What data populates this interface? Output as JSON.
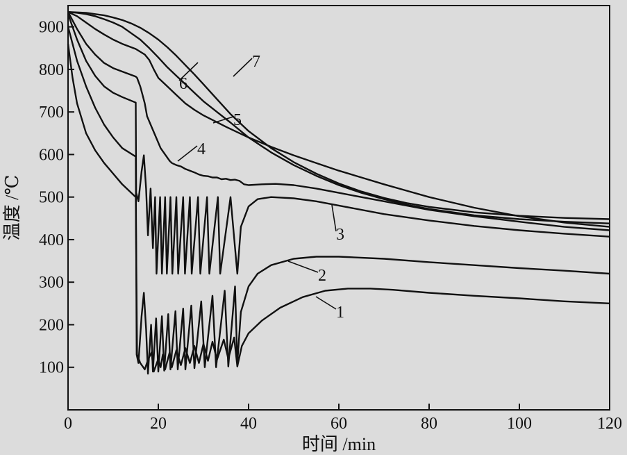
{
  "chart_data": {
    "type": "line",
    "xlabel": "时间 /min",
    "ylabel": "温度 /℃",
    "xlim": [
      0,
      120
    ],
    "ylim": [
      0,
      950
    ],
    "xticks": [
      0,
      20,
      40,
      60,
      80,
      100,
      120
    ],
    "yticks": [
      100,
      200,
      300,
      400,
      500,
      600,
      700,
      800,
      900
    ],
    "x_tick_labels": [
      "0",
      "20",
      "40",
      "60",
      "80",
      "100",
      "120"
    ],
    "y_tick_labels": [
      "100",
      "200",
      "300",
      "400",
      "500",
      "600",
      "700",
      "800",
      "900"
    ],
    "grid": false,
    "colors": {
      "background": "#dcdcdc",
      "line": "#111111"
    },
    "series": [
      {
        "name": "1",
        "points": [
          [
            0,
            860
          ],
          [
            1,
            780
          ],
          [
            2,
            720
          ],
          [
            4,
            650
          ],
          [
            6,
            610
          ],
          [
            8,
            580
          ],
          [
            10,
            555
          ],
          [
            12,
            530
          ],
          [
            15,
            500
          ],
          [
            15.3,
            130
          ],
          [
            16,
            110
          ],
          [
            17,
            95
          ],
          [
            17.8,
            120
          ],
          [
            18.5,
            135
          ],
          [
            19,
            90
          ],
          [
            20,
            120
          ],
          [
            20.5,
            100
          ],
          [
            21,
            130
          ],
          [
            21.5,
            95
          ],
          [
            22.5,
            135
          ],
          [
            23,
            100
          ],
          [
            24,
            140
          ],
          [
            25,
            105
          ],
          [
            26,
            145
          ],
          [
            27,
            110
          ],
          [
            28,
            150
          ],
          [
            29,
            110
          ],
          [
            30,
            155
          ],
          [
            31,
            115
          ],
          [
            32,
            160
          ],
          [
            33,
            118
          ],
          [
            34.5,
            165
          ],
          [
            35.5,
            120
          ],
          [
            36.8,
            170
          ],
          [
            37.5,
            102
          ],
          [
            38.5,
            150
          ],
          [
            40,
            180
          ],
          [
            43,
            210
          ],
          [
            47,
            240
          ],
          [
            52,
            265
          ],
          [
            57,
            280
          ],
          [
            62,
            285
          ],
          [
            67,
            285
          ],
          [
            72,
            282
          ],
          [
            80,
            275
          ],
          [
            90,
            268
          ],
          [
            100,
            262
          ],
          [
            110,
            255
          ],
          [
            120,
            250
          ]
        ]
      },
      {
        "name": "2",
        "points": [
          [
            0,
            900
          ],
          [
            1,
            860
          ],
          [
            2,
            820
          ],
          [
            4,
            760
          ],
          [
            6,
            710
          ],
          [
            8,
            670
          ],
          [
            10,
            640
          ],
          [
            12,
            615
          ],
          [
            15,
            595
          ],
          [
            15.2,
            130
          ],
          [
            15.6,
            110
          ],
          [
            16.3,
            220
          ],
          [
            16.8,
            275
          ],
          [
            17.3,
            190
          ],
          [
            17.7,
            85
          ],
          [
            18.4,
            200
          ],
          [
            18.8,
            90
          ],
          [
            19.5,
            215
          ],
          [
            20,
            90
          ],
          [
            20.8,
            220
          ],
          [
            21.3,
            92
          ],
          [
            22.2,
            225
          ],
          [
            22.7,
            95
          ],
          [
            23.8,
            232
          ],
          [
            24.3,
            95
          ],
          [
            25.5,
            238
          ],
          [
            26,
            95
          ],
          [
            27.3,
            245
          ],
          [
            28,
            98
          ],
          [
            29.5,
            255
          ],
          [
            30.3,
            100
          ],
          [
            32,
            268
          ],
          [
            32.8,
            100
          ],
          [
            34.7,
            280
          ],
          [
            35.5,
            102
          ],
          [
            37,
            290
          ],
          [
            37.5,
            110
          ],
          [
            38.3,
            230
          ],
          [
            40,
            290
          ],
          [
            42,
            320
          ],
          [
            45,
            340
          ],
          [
            50,
            355
          ],
          [
            55,
            360
          ],
          [
            60,
            360
          ],
          [
            70,
            355
          ],
          [
            80,
            347
          ],
          [
            90,
            340
          ],
          [
            100,
            333
          ],
          [
            110,
            327
          ],
          [
            120,
            320
          ]
        ]
      },
      {
        "name": "3",
        "points": [
          [
            0,
            930
          ],
          [
            1,
            900
          ],
          [
            2,
            870
          ],
          [
            4,
            820
          ],
          [
            6,
            785
          ],
          [
            8,
            760
          ],
          [
            10,
            745
          ],
          [
            12,
            735
          ],
          [
            15,
            722
          ],
          [
            15.1,
            510
          ],
          [
            15.6,
            490
          ],
          [
            16.3,
            560
          ],
          [
            16.8,
            598
          ],
          [
            17.3,
            520
          ],
          [
            17.7,
            410
          ],
          [
            18.3,
            520
          ],
          [
            18.8,
            380
          ],
          [
            19.3,
            500
          ],
          [
            19.6,
            320
          ],
          [
            20.4,
            500
          ],
          [
            20.8,
            320
          ],
          [
            21.5,
            500
          ],
          [
            21.9,
            320
          ],
          [
            22.7,
            500
          ],
          [
            23.1,
            320
          ],
          [
            24,
            500
          ],
          [
            24.4,
            320
          ],
          [
            25.5,
            500
          ],
          [
            25.9,
            320
          ],
          [
            27,
            500
          ],
          [
            27.4,
            320
          ],
          [
            28.8,
            500
          ],
          [
            29.3,
            320
          ],
          [
            30.8,
            500
          ],
          [
            31.3,
            320
          ],
          [
            33.2,
            500
          ],
          [
            33.7,
            320
          ],
          [
            36,
            500
          ],
          [
            37.5,
            320
          ],
          [
            38.3,
            430
          ],
          [
            40,
            478
          ],
          [
            42,
            495
          ],
          [
            45,
            500
          ],
          [
            50,
            497
          ],
          [
            55,
            490
          ],
          [
            60,
            480
          ],
          [
            70,
            460
          ],
          [
            80,
            445
          ],
          [
            90,
            432
          ],
          [
            100,
            422
          ],
          [
            110,
            414
          ],
          [
            120,
            407
          ]
        ]
      },
      {
        "name": "4",
        "points": [
          [
            0,
            935
          ],
          [
            1,
            915
          ],
          [
            2,
            895
          ],
          [
            4,
            860
          ],
          [
            6,
            835
          ],
          [
            8,
            815
          ],
          [
            10,
            803
          ],
          [
            12,
            795
          ],
          [
            15,
            783
          ],
          [
            15.3,
            780
          ],
          [
            16,
            760
          ],
          [
            16.5,
            740
          ],
          [
            17,
            720
          ],
          [
            17.5,
            690
          ],
          [
            18.5,
            665
          ],
          [
            19.5,
            640
          ],
          [
            20.5,
            615
          ],
          [
            21.5,
            600
          ],
          [
            22.5,
            585
          ],
          [
            23,
            580
          ],
          [
            24,
            575
          ],
          [
            25,
            572
          ],
          [
            26,
            566
          ],
          [
            27,
            562
          ],
          [
            28,
            558
          ],
          [
            29,
            553
          ],
          [
            30,
            550
          ],
          [
            31,
            549
          ],
          [
            32,
            546
          ],
          [
            33,
            546
          ],
          [
            34,
            542
          ],
          [
            35,
            543
          ],
          [
            36,
            540
          ],
          [
            37,
            541
          ],
          [
            38,
            538
          ],
          [
            39,
            530
          ],
          [
            40,
            528
          ],
          [
            43,
            530
          ],
          [
            46,
            531
          ],
          [
            50,
            528
          ],
          [
            55,
            520
          ],
          [
            60,
            510
          ],
          [
            70,
            490
          ],
          [
            80,
            470
          ],
          [
            90,
            455
          ],
          [
            100,
            442
          ],
          [
            110,
            430
          ],
          [
            120,
            422
          ]
        ]
      },
      {
        "name": "5",
        "points": [
          [
            0,
            935
          ],
          [
            1,
            930
          ],
          [
            2,
            925
          ],
          [
            4,
            910
          ],
          [
            6,
            895
          ],
          [
            8,
            882
          ],
          [
            10,
            870
          ],
          [
            12,
            860
          ],
          [
            15,
            848
          ],
          [
            17,
            835
          ],
          [
            18,
            822
          ],
          [
            19,
            800
          ],
          [
            20,
            780
          ],
          [
            22,
            760
          ],
          [
            24,
            740
          ],
          [
            26,
            720
          ],
          [
            28,
            705
          ],
          [
            30,
            692
          ],
          [
            35,
            665
          ],
          [
            40,
            640
          ],
          [
            45,
            618
          ],
          [
            50,
            598
          ],
          [
            55,
            580
          ],
          [
            60,
            562
          ],
          [
            65,
            546
          ],
          [
            70,
            530
          ],
          [
            75,
            515
          ],
          [
            80,
            500
          ],
          [
            90,
            475
          ],
          [
            100,
            455
          ],
          [
            110,
            440
          ],
          [
            120,
            430
          ]
        ]
      },
      {
        "name": "6",
        "points": [
          [
            0,
            935
          ],
          [
            2,
            933
          ],
          [
            4,
            930
          ],
          [
            6,
            925
          ],
          [
            8,
            918
          ],
          [
            10,
            910
          ],
          [
            12,
            900
          ],
          [
            14,
            885
          ],
          [
            16,
            870
          ],
          [
            18,
            850
          ],
          [
            20,
            828
          ],
          [
            22,
            805
          ],
          [
            24,
            785
          ],
          [
            26,
            765
          ],
          [
            28,
            745
          ],
          [
            30,
            725
          ],
          [
            33,
            700
          ],
          [
            36,
            675
          ],
          [
            40,
            640
          ],
          [
            45,
            605
          ],
          [
            50,
            575
          ],
          [
            55,
            550
          ],
          [
            60,
            528
          ],
          [
            65,
            510
          ],
          [
            70,
            495
          ],
          [
            75,
            482
          ],
          [
            80,
            472
          ],
          [
            90,
            457
          ],
          [
            100,
            448
          ],
          [
            110,
            442
          ],
          [
            120,
            438
          ]
        ]
      },
      {
        "name": "7",
        "points": [
          [
            0,
            935
          ],
          [
            2,
            934
          ],
          [
            4,
            933
          ],
          [
            6,
            930
          ],
          [
            8,
            927
          ],
          [
            10,
            922
          ],
          [
            12,
            916
          ],
          [
            14,
            908
          ],
          [
            16,
            898
          ],
          [
            18,
            885
          ],
          [
            20,
            870
          ],
          [
            22,
            852
          ],
          [
            24,
            832
          ],
          [
            26,
            810
          ],
          [
            28,
            788
          ],
          [
            30,
            765
          ],
          [
            33,
            730
          ],
          [
            36,
            695
          ],
          [
            40,
            655
          ],
          [
            45,
            615
          ],
          [
            50,
            582
          ],
          [
            55,
            555
          ],
          [
            60,
            532
          ],
          [
            65,
            513
          ],
          [
            70,
            498
          ],
          [
            75,
            486
          ],
          [
            80,
            477
          ],
          [
            90,
            464
          ],
          [
            100,
            456
          ],
          [
            110,
            451
          ],
          [
            120,
            448
          ]
        ]
      }
    ]
  }
}
